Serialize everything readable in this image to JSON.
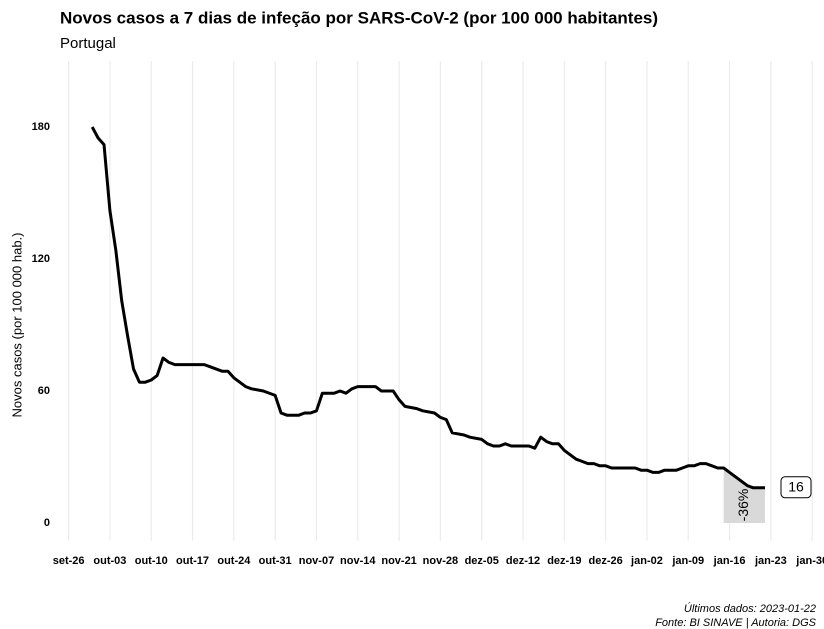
{
  "chart_data": {
    "type": "line",
    "title": "Novos casos a 7 dias de infeção por SARS-CoV-2 (por 100 000 habitantes)",
    "subtitle": "Portugal",
    "ylabel": "Novos casos (por 100 000 hab.)",
    "x": [
      "set-30",
      "out-01",
      "out-02",
      "out-03",
      "out-04",
      "out-05",
      "out-06",
      "out-07",
      "out-08",
      "out-09",
      "out-10",
      "out-11",
      "out-12",
      "out-13",
      "out-14",
      "out-19",
      "out-20",
      "out-22",
      "out-23",
      "out-24",
      "out-26",
      "out-27",
      "out-29",
      "out-31",
      "nov-01",
      "nov-02",
      "nov-04",
      "nov-05",
      "nov-06",
      "nov-07",
      "nov-08",
      "nov-10",
      "nov-11",
      "nov-12",
      "nov-13",
      "nov-14",
      "nov-17",
      "nov-18",
      "nov-20",
      "nov-21",
      "nov-22",
      "nov-24",
      "nov-25",
      "nov-27",
      "nov-28",
      "nov-29",
      "nov-30",
      "dez-02",
      "dez-03",
      "dez-05",
      "dez-06",
      "dez-07",
      "dez-08",
      "dez-09",
      "dez-10",
      "dez-13",
      "dez-14",
      "dez-15",
      "dez-16",
      "dez-17",
      "dez-18",
      "dez-19",
      "dez-20",
      "dez-21",
      "dez-22",
      "dez-23",
      "dez-24",
      "dez-25",
      "dez-26",
      "dez-27",
      "dez-31",
      "jan-01",
      "jan-02",
      "jan-03",
      "jan-04",
      "jan-05",
      "jan-07",
      "jan-08",
      "jan-09",
      "jan-10",
      "jan-11",
      "jan-12",
      "jan-13",
      "jan-14",
      "jan-15",
      "jan-16",
      "jan-17",
      "jan-18",
      "jan-19",
      "jan-20",
      "jan-21",
      "jan-22"
    ],
    "values": [
      180,
      175,
      172,
      142,
      124,
      101,
      85,
      70,
      64,
      64,
      65,
      67,
      75,
      73,
      72,
      72,
      71,
      69,
      69,
      66,
      62,
      61,
      60,
      58,
      50,
      49,
      49,
      50,
      50,
      51,
      59,
      59,
      60,
      59,
      61,
      62,
      62,
      60,
      60,
      56,
      53,
      52,
      51,
      50,
      48,
      47,
      41,
      40,
      39,
      38,
      36,
      35,
      35,
      36,
      35,
      35,
      34,
      39,
      37,
      36,
      36,
      33,
      31,
      29,
      28,
      27,
      27,
      26,
      26,
      25,
      25,
      24,
      24,
      23,
      23,
      24,
      24,
      25,
      26,
      26,
      27,
      27,
      26,
      25,
      25,
      23,
      21,
      19,
      17,
      16,
      16,
      16
    ],
    "color": "#000000",
    "xlim": [
      "set-22",
      "fev-01"
    ],
    "xticks": [
      "set-26",
      "out-03",
      "out-10",
      "out-17",
      "out-24",
      "out-31",
      "nov-07",
      "nov-14",
      "nov-21",
      "nov-28",
      "dez-05",
      "dez-12",
      "dez-19",
      "dez-26",
      "jan-02",
      "jan-09",
      "jan-16",
      "jan-23",
      "jan-30"
    ],
    "ylim": [
      -8,
      210
    ],
    "yticks": [
      0,
      60,
      120,
      180
    ],
    "grid": "x",
    "shade": {
      "from": "jan-15",
      "to": "jan-22",
      "label": "-36%",
      "color": "#d9d9d9"
    },
    "captions": [
      "Últimos dados: 2023-01-22",
      "Fonte: BI SINAVE | Autoria: DGS"
    ]
  }
}
